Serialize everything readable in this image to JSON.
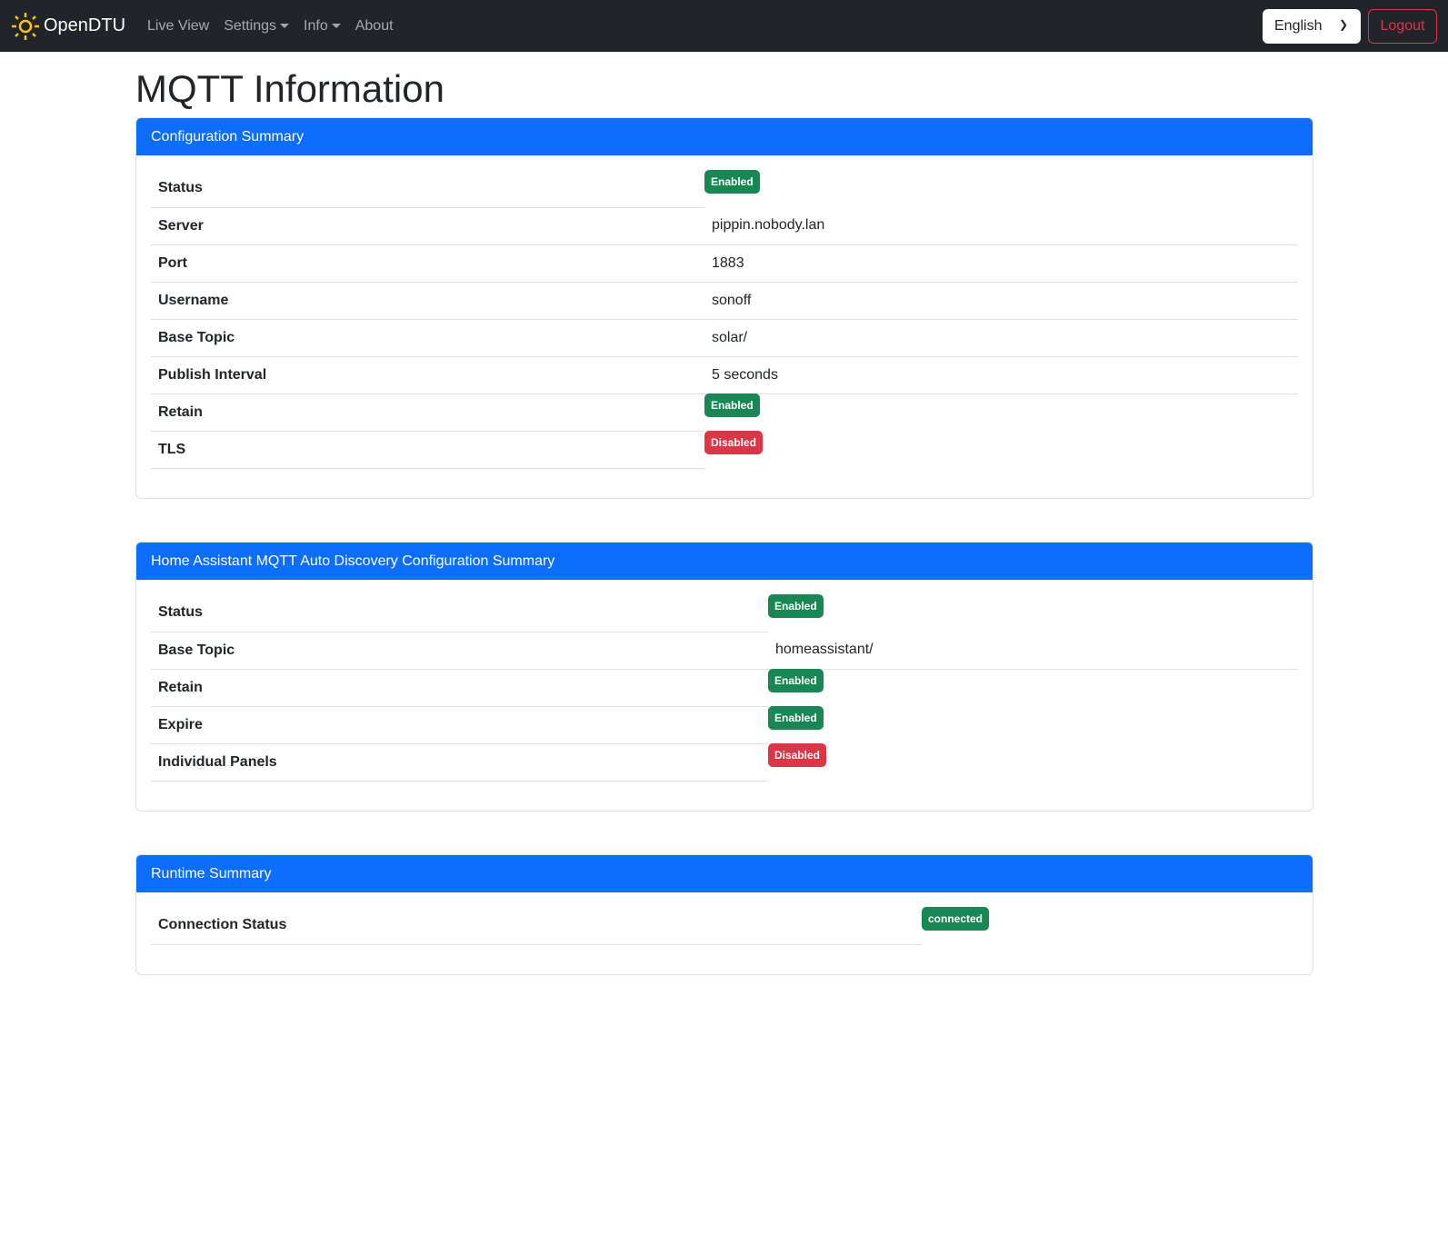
{
  "navbar": {
    "brand": "OpenDTU",
    "links": [
      "Live View",
      "Settings",
      "Info",
      "About"
    ],
    "language": "English",
    "logout": "Logout"
  },
  "page_title": "MQTT Information",
  "config": {
    "title": "Configuration Summary",
    "rows": [
      {
        "label": "Status",
        "value": "Enabled",
        "type": "ok"
      },
      {
        "label": "Server",
        "value": "pippin.nobody.lan"
      },
      {
        "label": "Port",
        "value": "1883"
      },
      {
        "label": "Username",
        "value": "sonoff"
      },
      {
        "label": "Base Topic",
        "value": "solar/"
      },
      {
        "label": "Publish Interval",
        "value": "5 seconds"
      },
      {
        "label": "Retain",
        "value": "Enabled",
        "type": "ok"
      },
      {
        "label": "TLS",
        "value": "Disabled",
        "type": "bad"
      }
    ]
  },
  "ha": {
    "title": "Home Assistant MQTT Auto Discovery Configuration Summary",
    "rows": [
      {
        "label": "Status",
        "value": "Enabled",
        "type": "ok"
      },
      {
        "label": "Base Topic",
        "value": "homeassistant/"
      },
      {
        "label": "Retain",
        "value": "Enabled",
        "type": "ok"
      },
      {
        "label": "Expire",
        "value": "Enabled",
        "type": "ok"
      },
      {
        "label": "Individual Panels",
        "value": "Disabled",
        "type": "bad"
      }
    ]
  },
  "runtime": {
    "title": "Runtime Summary",
    "rows": [
      {
        "label": "Connection Status",
        "value": "connected",
        "type": "ok"
      }
    ]
  },
  "colors": {
    "primary": "#0d6efd",
    "success": "#198754",
    "danger": "#dc3545",
    "navbar": "#212529"
  }
}
